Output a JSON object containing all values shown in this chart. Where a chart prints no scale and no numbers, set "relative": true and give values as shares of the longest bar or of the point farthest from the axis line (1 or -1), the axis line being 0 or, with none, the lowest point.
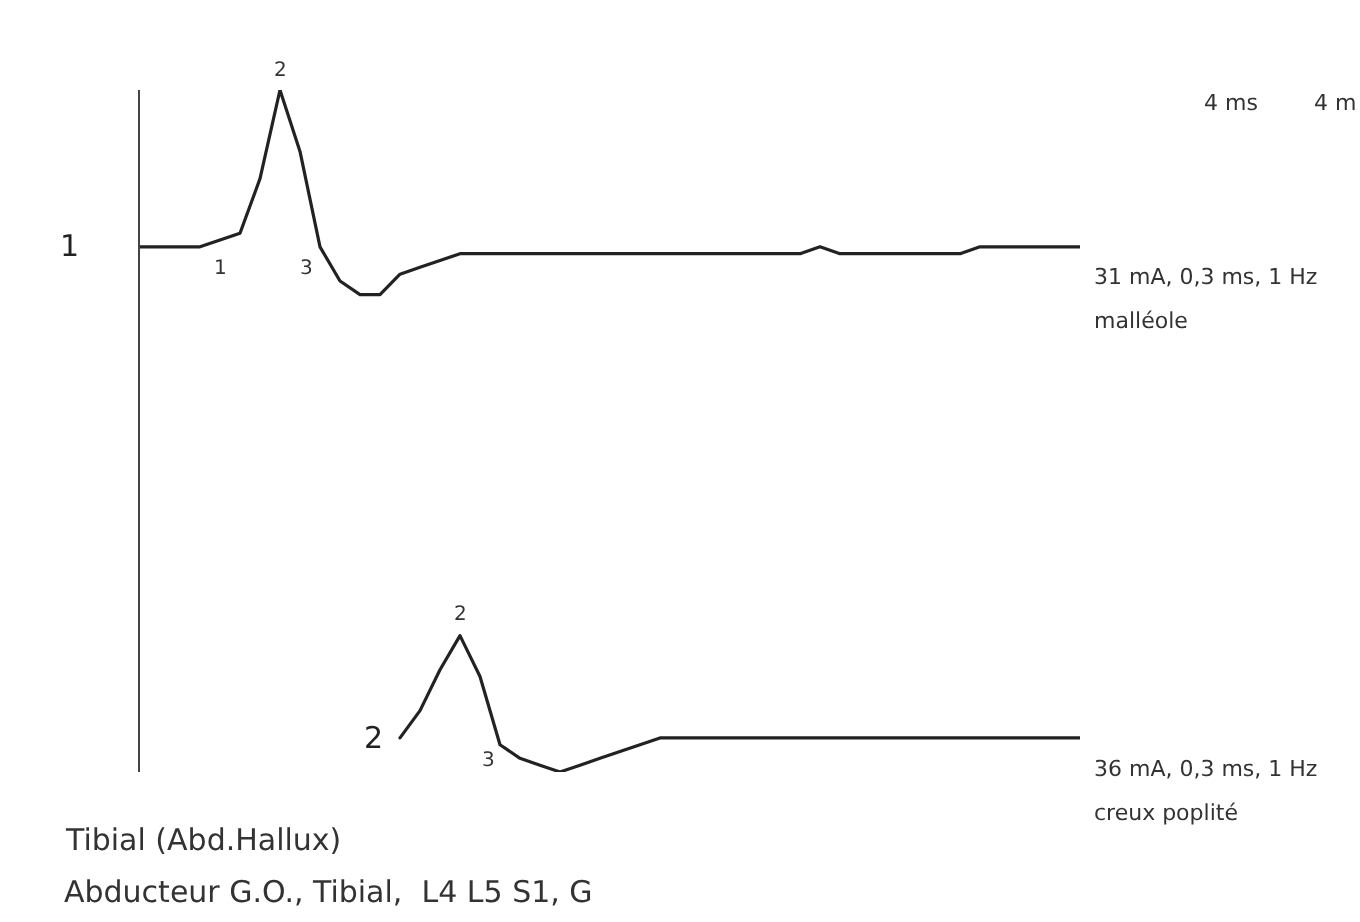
{
  "chart_data": {
    "type": "line",
    "relative": true,
    "legend": false,
    "marker": "none",
    "line_style": "solid",
    "categories": [
      null,
      null,
      null,
      null,
      null,
      null,
      null,
      null,
      null,
      null,
      null,
      null,
      null,
      null,
      null,
      null,
      null,
      null,
      null,
      null,
      null,
      null,
      null,
      null,
      null,
      null,
      null,
      null,
      null,
      null,
      null,
      null,
      null,
      null,
      null,
      null,
      null,
      null,
      null,
      null,
      null,
      null,
      null,
      null,
      null,
      null,
      null,
      null
    ],
    "series": [
      {
        "name": "1",
        "color": "#222222",
        "values": [
          0.77,
          0.77,
          0.77,
          0.77,
          0.78,
          0.79,
          0.87,
          1.0,
          0.91,
          0.77,
          0.72,
          0.7,
          0.7,
          0.73,
          0.74,
          0.75,
          0.76,
          0.76,
          0.76,
          0.76,
          0.76,
          0.76,
          0.76,
          0.76,
          0.76,
          0.76,
          0.76,
          0.76,
          0.76,
          0.76,
          0.76,
          0.76,
          0.76,
          0.76,
          0.77,
          0.76,
          0.76,
          0.76,
          0.76,
          0.76,
          0.76,
          0.76,
          0.77,
          0.77,
          0.77,
          0.77,
          0.77,
          0.77
        ]
      },
      {
        "name": "2",
        "color": "#222222",
        "values": [
          null,
          null,
          null,
          null,
          null,
          null,
          null,
          null,
          null,
          null,
          null,
          null,
          null,
          0.05,
          0.09,
          0.15,
          0.2,
          0.14,
          0.04,
          0.02,
          0.01,
          0.0,
          0.01,
          0.02,
          0.03,
          0.04,
          0.05,
          0.05,
          0.05,
          0.05,
          0.05,
          0.05,
          0.05,
          0.05,
          0.05,
          0.05,
          0.05,
          0.05,
          0.05,
          0.05,
          0.05,
          0.05,
          0.05,
          0.05,
          0.05,
          0.05,
          0.05,
          0.05
        ]
      }
    ],
    "annotations": [
      "4 ms",
      "4 m",
      "31 mA, 0,3 ms, 1 Hz",
      "malléole",
      "36 mA, 0,3 ms, 1 Hz",
      "creux poplité",
      "Tibial (Abd.Hallux)",
      "Abducteur G.O., Tibial,  L4 L5 S1, G",
      "1",
      "2",
      "3",
      "2",
      "3"
    ]
  }
}
